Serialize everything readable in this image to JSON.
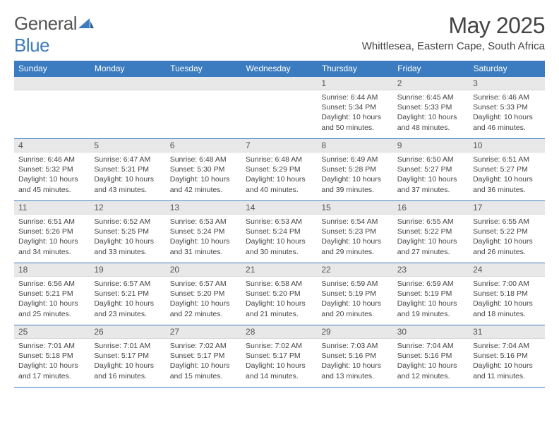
{
  "logo": {
    "general": "General",
    "blue": "Blue"
  },
  "title": "May 2025",
  "location": "Whittlesea, Eastern Cape, South Africa",
  "colors": {
    "header_bg": "#3b7bbf",
    "header_text": "#ffffff",
    "daynum_bg": "#e8e8e8",
    "border": "#3b7bbf",
    "text": "#444444",
    "background": "#ffffff"
  },
  "dayHeaders": [
    "Sunday",
    "Monday",
    "Tuesday",
    "Wednesday",
    "Thursday",
    "Friday",
    "Saturday"
  ],
  "weeks": [
    [
      {
        "empty": true
      },
      {
        "empty": true
      },
      {
        "empty": true
      },
      {
        "empty": true
      },
      {
        "num": "1",
        "sunrise": "Sunrise: 6:44 AM",
        "sunset": "Sunset: 5:34 PM",
        "day1": "Daylight: 10 hours",
        "day2": "and 50 minutes."
      },
      {
        "num": "2",
        "sunrise": "Sunrise: 6:45 AM",
        "sunset": "Sunset: 5:33 PM",
        "day1": "Daylight: 10 hours",
        "day2": "and 48 minutes."
      },
      {
        "num": "3",
        "sunrise": "Sunrise: 6:46 AM",
        "sunset": "Sunset: 5:33 PM",
        "day1": "Daylight: 10 hours",
        "day2": "and 46 minutes."
      }
    ],
    [
      {
        "num": "4",
        "sunrise": "Sunrise: 6:46 AM",
        "sunset": "Sunset: 5:32 PM",
        "day1": "Daylight: 10 hours",
        "day2": "and 45 minutes."
      },
      {
        "num": "5",
        "sunrise": "Sunrise: 6:47 AM",
        "sunset": "Sunset: 5:31 PM",
        "day1": "Daylight: 10 hours",
        "day2": "and 43 minutes."
      },
      {
        "num": "6",
        "sunrise": "Sunrise: 6:48 AM",
        "sunset": "Sunset: 5:30 PM",
        "day1": "Daylight: 10 hours",
        "day2": "and 42 minutes."
      },
      {
        "num": "7",
        "sunrise": "Sunrise: 6:48 AM",
        "sunset": "Sunset: 5:29 PM",
        "day1": "Daylight: 10 hours",
        "day2": "and 40 minutes."
      },
      {
        "num": "8",
        "sunrise": "Sunrise: 6:49 AM",
        "sunset": "Sunset: 5:28 PM",
        "day1": "Daylight: 10 hours",
        "day2": "and 39 minutes."
      },
      {
        "num": "9",
        "sunrise": "Sunrise: 6:50 AM",
        "sunset": "Sunset: 5:27 PM",
        "day1": "Daylight: 10 hours",
        "day2": "and 37 minutes."
      },
      {
        "num": "10",
        "sunrise": "Sunrise: 6:51 AM",
        "sunset": "Sunset: 5:27 PM",
        "day1": "Daylight: 10 hours",
        "day2": "and 36 minutes."
      }
    ],
    [
      {
        "num": "11",
        "sunrise": "Sunrise: 6:51 AM",
        "sunset": "Sunset: 5:26 PM",
        "day1": "Daylight: 10 hours",
        "day2": "and 34 minutes."
      },
      {
        "num": "12",
        "sunrise": "Sunrise: 6:52 AM",
        "sunset": "Sunset: 5:25 PM",
        "day1": "Daylight: 10 hours",
        "day2": "and 33 minutes."
      },
      {
        "num": "13",
        "sunrise": "Sunrise: 6:53 AM",
        "sunset": "Sunset: 5:24 PM",
        "day1": "Daylight: 10 hours",
        "day2": "and 31 minutes."
      },
      {
        "num": "14",
        "sunrise": "Sunrise: 6:53 AM",
        "sunset": "Sunset: 5:24 PM",
        "day1": "Daylight: 10 hours",
        "day2": "and 30 minutes."
      },
      {
        "num": "15",
        "sunrise": "Sunrise: 6:54 AM",
        "sunset": "Sunset: 5:23 PM",
        "day1": "Daylight: 10 hours",
        "day2": "and 29 minutes."
      },
      {
        "num": "16",
        "sunrise": "Sunrise: 6:55 AM",
        "sunset": "Sunset: 5:22 PM",
        "day1": "Daylight: 10 hours",
        "day2": "and 27 minutes."
      },
      {
        "num": "17",
        "sunrise": "Sunrise: 6:55 AM",
        "sunset": "Sunset: 5:22 PM",
        "day1": "Daylight: 10 hours",
        "day2": "and 26 minutes."
      }
    ],
    [
      {
        "num": "18",
        "sunrise": "Sunrise: 6:56 AM",
        "sunset": "Sunset: 5:21 PM",
        "day1": "Daylight: 10 hours",
        "day2": "and 25 minutes."
      },
      {
        "num": "19",
        "sunrise": "Sunrise: 6:57 AM",
        "sunset": "Sunset: 5:21 PM",
        "day1": "Daylight: 10 hours",
        "day2": "and 23 minutes."
      },
      {
        "num": "20",
        "sunrise": "Sunrise: 6:57 AM",
        "sunset": "Sunset: 5:20 PM",
        "day1": "Daylight: 10 hours",
        "day2": "and 22 minutes."
      },
      {
        "num": "21",
        "sunrise": "Sunrise: 6:58 AM",
        "sunset": "Sunset: 5:20 PM",
        "day1": "Daylight: 10 hours",
        "day2": "and 21 minutes."
      },
      {
        "num": "22",
        "sunrise": "Sunrise: 6:59 AM",
        "sunset": "Sunset: 5:19 PM",
        "day1": "Daylight: 10 hours",
        "day2": "and 20 minutes."
      },
      {
        "num": "23",
        "sunrise": "Sunrise: 6:59 AM",
        "sunset": "Sunset: 5:19 PM",
        "day1": "Daylight: 10 hours",
        "day2": "and 19 minutes."
      },
      {
        "num": "24",
        "sunrise": "Sunrise: 7:00 AM",
        "sunset": "Sunset: 5:18 PM",
        "day1": "Daylight: 10 hours",
        "day2": "and 18 minutes."
      }
    ],
    [
      {
        "num": "25",
        "sunrise": "Sunrise: 7:01 AM",
        "sunset": "Sunset: 5:18 PM",
        "day1": "Daylight: 10 hours",
        "day2": "and 17 minutes."
      },
      {
        "num": "26",
        "sunrise": "Sunrise: 7:01 AM",
        "sunset": "Sunset: 5:17 PM",
        "day1": "Daylight: 10 hours",
        "day2": "and 16 minutes."
      },
      {
        "num": "27",
        "sunrise": "Sunrise: 7:02 AM",
        "sunset": "Sunset: 5:17 PM",
        "day1": "Daylight: 10 hours",
        "day2": "and 15 minutes."
      },
      {
        "num": "28",
        "sunrise": "Sunrise: 7:02 AM",
        "sunset": "Sunset: 5:17 PM",
        "day1": "Daylight: 10 hours",
        "day2": "and 14 minutes."
      },
      {
        "num": "29",
        "sunrise": "Sunrise: 7:03 AM",
        "sunset": "Sunset: 5:16 PM",
        "day1": "Daylight: 10 hours",
        "day2": "and 13 minutes."
      },
      {
        "num": "30",
        "sunrise": "Sunrise: 7:04 AM",
        "sunset": "Sunset: 5:16 PM",
        "day1": "Daylight: 10 hours",
        "day2": "and 12 minutes."
      },
      {
        "num": "31",
        "sunrise": "Sunrise: 7:04 AM",
        "sunset": "Sunset: 5:16 PM",
        "day1": "Daylight: 10 hours",
        "day2": "and 11 minutes."
      }
    ]
  ]
}
